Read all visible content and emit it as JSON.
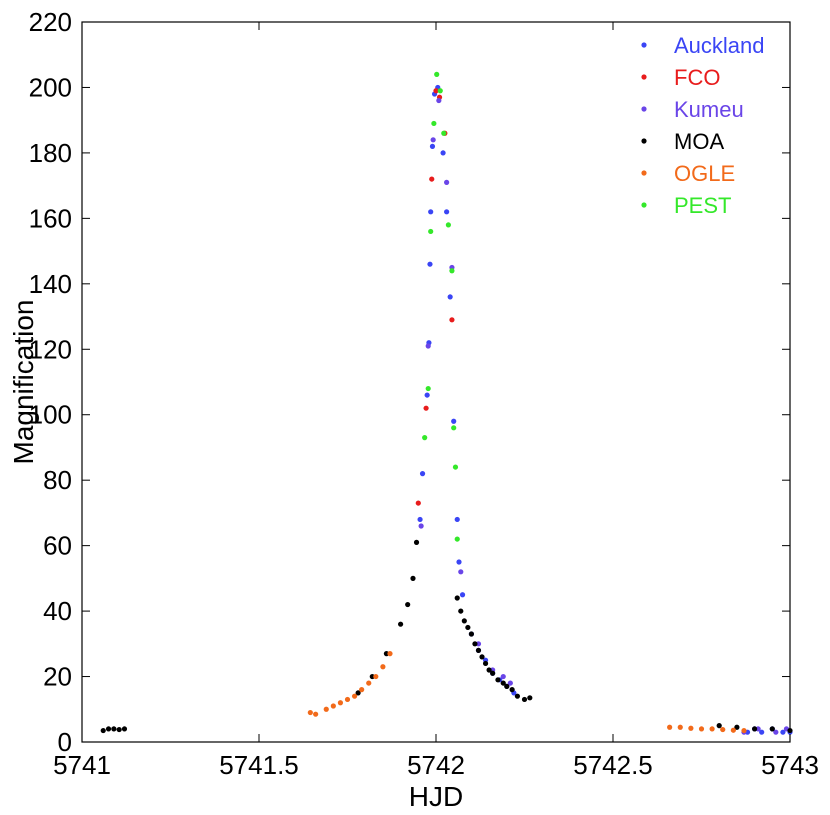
{
  "chart_data": {
    "type": "scatter",
    "title": "",
    "xlabel": "HJD",
    "ylabel": "Magnification",
    "xlim": [
      5741,
      5743
    ],
    "ylim": [
      0,
      220
    ],
    "x_ticks": [
      "5741",
      "5741.5",
      "5742",
      "5742.5",
      "5743"
    ],
    "y_ticks": [
      "0",
      "20",
      "40",
      "60",
      "80",
      "100",
      "120",
      "140",
      "160",
      "180",
      "200",
      "220"
    ],
    "grid": false,
    "legend_position": "top-right",
    "series": [
      {
        "name": "Auckland",
        "color": "#3a45f5",
        "points": [
          [
            5741.955,
            68
          ],
          [
            5741.962,
            82
          ],
          [
            5741.975,
            106
          ],
          [
            5741.98,
            122
          ],
          [
            5741.983,
            146
          ],
          [
            5741.985,
            162
          ],
          [
            5741.99,
            182
          ],
          [
            5741.996,
            198
          ],
          [
            5742.005,
            200
          ],
          [
            5742.02,
            180
          ],
          [
            5742.03,
            162
          ],
          [
            5742.04,
            136
          ],
          [
            5742.05,
            98
          ],
          [
            5742.06,
            68
          ],
          [
            5742.065,
            55
          ],
          [
            5742.075,
            45
          ],
          [
            5742.1,
            33
          ],
          [
            5742.12,
            28
          ],
          [
            5742.14,
            25
          ],
          [
            5742.16,
            21
          ],
          [
            5742.18,
            19
          ],
          [
            5742.2,
            17
          ],
          [
            5742.22,
            15
          ],
          [
            5742.88,
            3
          ],
          [
            5742.9,
            4
          ],
          [
            5742.92,
            3
          ],
          [
            5742.95,
            4
          ],
          [
            5742.98,
            3
          ],
          [
            5743.0,
            3
          ]
        ]
      },
      {
        "name": "FCO",
        "color": "#e81c1c",
        "points": [
          [
            5741.95,
            73
          ],
          [
            5741.972,
            102
          ],
          [
            5741.988,
            172
          ],
          [
            5742.0,
            199
          ],
          [
            5742.01,
            197
          ],
          [
            5742.025,
            186
          ],
          [
            5742.045,
            129
          ]
        ]
      },
      {
        "name": "Kumeu",
        "color": "#6a45e8",
        "points": [
          [
            5741.958,
            66
          ],
          [
            5741.978,
            121
          ],
          [
            5741.992,
            184
          ],
          [
            5742.008,
            196
          ],
          [
            5742.03,
            171
          ],
          [
            5742.045,
            145
          ],
          [
            5742.07,
            52
          ],
          [
            5742.12,
            30
          ],
          [
            5742.16,
            22
          ],
          [
            5742.19,
            20
          ],
          [
            5742.21,
            18
          ],
          [
            5742.87,
            3
          ],
          [
            5742.91,
            4
          ],
          [
            5742.96,
            3
          ],
          [
            5742.99,
            4
          ]
        ]
      },
      {
        "name": "MOA",
        "color": "#000000",
        "points": [
          [
            5741.06,
            3.5
          ],
          [
            5741.075,
            4
          ],
          [
            5741.09,
            4
          ],
          [
            5741.105,
            3.8
          ],
          [
            5741.12,
            4
          ],
          [
            5741.78,
            15
          ],
          [
            5741.82,
            20
          ],
          [
            5741.86,
            27
          ],
          [
            5741.9,
            36
          ],
          [
            5741.92,
            42
          ],
          [
            5741.935,
            50
          ],
          [
            5741.945,
            61
          ],
          [
            5742.06,
            44
          ],
          [
            5742.07,
            40
          ],
          [
            5742.08,
            37
          ],
          [
            5742.09,
            35
          ],
          [
            5742.1,
            33
          ],
          [
            5742.11,
            30
          ],
          [
            5742.12,
            28
          ],
          [
            5742.13,
            26
          ],
          [
            5742.14,
            24
          ],
          [
            5742.15,
            22
          ],
          [
            5742.16,
            21
          ],
          [
            5742.175,
            19
          ],
          [
            5742.19,
            18
          ],
          [
            5742.2,
            17
          ],
          [
            5742.215,
            16
          ],
          [
            5742.23,
            14
          ],
          [
            5742.25,
            13
          ],
          [
            5742.265,
            13.5
          ],
          [
            5742.8,
            5
          ],
          [
            5742.85,
            4.5
          ],
          [
            5742.9,
            4
          ],
          [
            5742.95,
            4
          ],
          [
            5743.0,
            3.5
          ]
        ]
      },
      {
        "name": "OGLE",
        "color": "#f26a1a",
        "points": [
          [
            5741.645,
            9
          ],
          [
            5741.66,
            8.5
          ],
          [
            5741.69,
            10
          ],
          [
            5741.71,
            11
          ],
          [
            5741.73,
            12
          ],
          [
            5741.75,
            13
          ],
          [
            5741.77,
            14
          ],
          [
            5741.79,
            16
          ],
          [
            5741.81,
            18
          ],
          [
            5741.83,
            20
          ],
          [
            5741.85,
            23
          ],
          [
            5741.87,
            27
          ],
          [
            5742.66,
            4.5
          ],
          [
            5742.69,
            4.5
          ],
          [
            5742.72,
            4.2
          ],
          [
            5742.75,
            4
          ],
          [
            5742.78,
            4
          ],
          [
            5742.81,
            3.8
          ],
          [
            5742.84,
            3.6
          ],
          [
            5742.87,
            3.5
          ]
        ]
      },
      {
        "name": "PEST",
        "color": "#34e82a",
        "points": [
          [
            5741.968,
            93
          ],
          [
            5741.978,
            108
          ],
          [
            5741.985,
            156
          ],
          [
            5741.994,
            189
          ],
          [
            5742.002,
            204
          ],
          [
            5742.012,
            199
          ],
          [
            5742.022,
            186
          ],
          [
            5742.035,
            158
          ],
          [
            5742.045,
            144
          ],
          [
            5742.05,
            96
          ],
          [
            5742.055,
            84
          ],
          [
            5742.06,
            62
          ]
        ]
      }
    ]
  }
}
